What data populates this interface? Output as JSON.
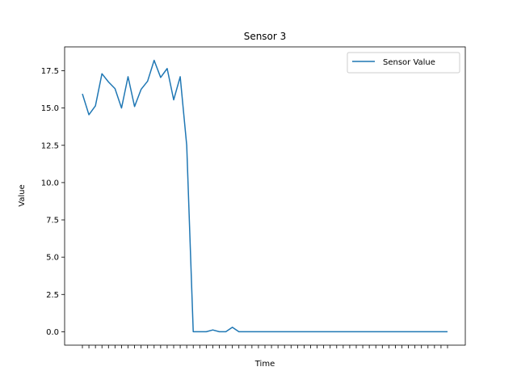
{
  "chart_data": {
    "type": "line",
    "title": "Sensor 3",
    "xlabel": "Time",
    "ylabel": "Value",
    "ylim": [
      -0.9,
      19.1
    ],
    "yticks": [
      0.0,
      2.5,
      5.0,
      7.5,
      10.0,
      12.5,
      15.0,
      17.5
    ],
    "ytick_labels": [
      "0.0",
      "2.5",
      "5.0",
      "7.5",
      "10.0",
      "12.5",
      "15.0",
      "17.5"
    ],
    "x_tick_labels_visible": false,
    "grid": false,
    "legend_position": "top-right",
    "series": [
      {
        "name": "Sensor Value",
        "color": "#1f77b4",
        "values": [
          15.95,
          14.55,
          15.15,
          17.3,
          16.75,
          16.3,
          15.0,
          17.1,
          15.1,
          16.25,
          16.8,
          18.2,
          17.05,
          17.65,
          15.55,
          17.1,
          12.5,
          0.0,
          0.0,
          0.0,
          0.12,
          0.0,
          0.0,
          0.3,
          0.0,
          0.0,
          0.0,
          0.0,
          0.0,
          0.0,
          0.0,
          0.0,
          0.0,
          0.0,
          0.0,
          0.0,
          0.0,
          0.0,
          0.0,
          0.0,
          0.0,
          0.0,
          0.0,
          0.0,
          0.0,
          0.0,
          0.0,
          0.0,
          0.0,
          0.0,
          0.0,
          0.0,
          0.0,
          0.0,
          0.0,
          0.0,
          0.0
        ]
      }
    ]
  }
}
